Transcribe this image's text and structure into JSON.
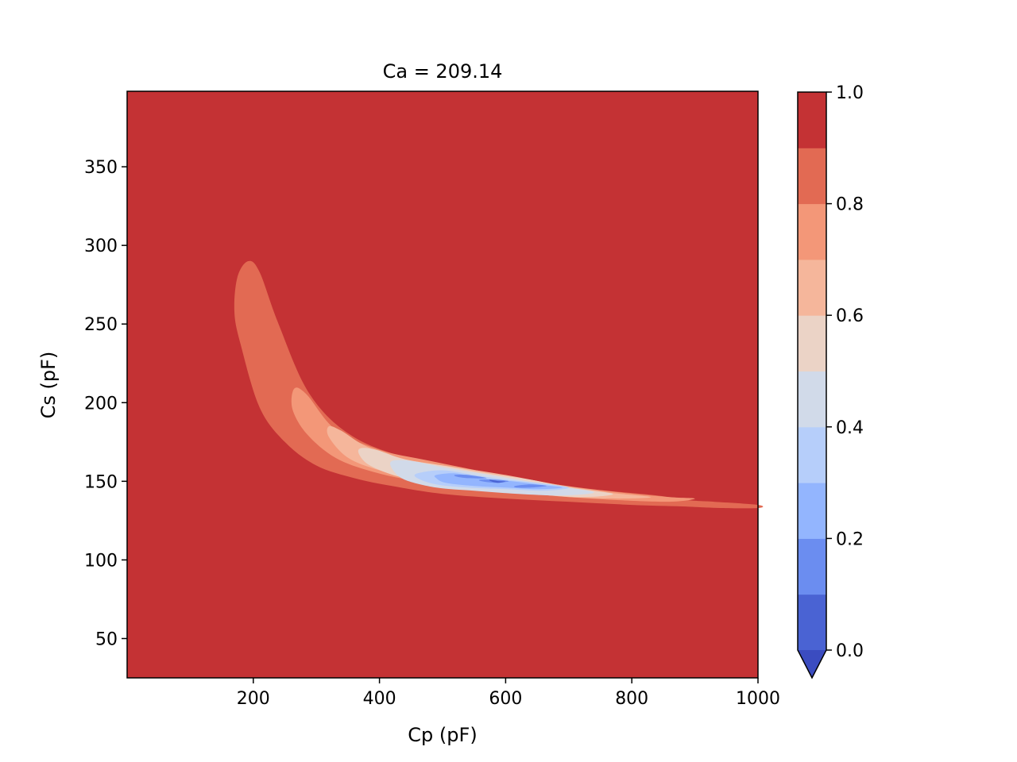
{
  "chart_data": {
    "type": "contourf",
    "title": "Ca = 209.14",
    "xlabel": "Cp (pF)",
    "ylabel": "Cs (pF)",
    "xlim": [
      0,
      1000
    ],
    "ylim": [
      25,
      398
    ],
    "x_ticks": [
      {
        "value": 200,
        "label": "200"
      },
      {
        "value": 400,
        "label": "400"
      },
      {
        "value": 600,
        "label": "600"
      },
      {
        "value": 800,
        "label": "800"
      },
      {
        "value": 1000,
        "label": "1000"
      }
    ],
    "y_ticks": [
      {
        "value": 50,
        "label": "50"
      },
      {
        "value": 100,
        "label": "100"
      },
      {
        "value": 150,
        "label": "150"
      },
      {
        "value": 200,
        "label": "200"
      },
      {
        "value": 250,
        "label": "250"
      },
      {
        "value": 300,
        "label": "300"
      },
      {
        "value": 350,
        "label": "350"
      }
    ],
    "colorbar": {
      "levels": [
        0.0,
        0.1,
        0.2,
        0.3,
        0.4,
        0.5,
        0.6,
        0.7,
        0.8,
        0.9,
        1.0
      ],
      "colors": [
        "#4a63d3",
        "#6b8df0",
        "#93b5fe",
        "#b6cefa",
        "#d1dae9",
        "#ebd3c6",
        "#f5b69b",
        "#f39778",
        "#e26a53",
        "#c43234"
      ],
      "extend_below_color": "#3b4cc0",
      "extend": "min",
      "tick_labels": [
        {
          "value": 0.0,
          "label": "0.0"
        },
        {
          "value": 0.2,
          "label": "0.2"
        },
        {
          "value": 0.4,
          "label": "0.4"
        },
        {
          "value": 0.6,
          "label": "0.6"
        },
        {
          "value": 0.8,
          "label": "0.8"
        },
        {
          "value": 1.0,
          "label": "1.0"
        }
      ]
    },
    "background_level_color": "#c43234",
    "contour_regions": [
      {
        "level": "0.8-0.9",
        "color": "#e26a53",
        "points": [
          [
            192,
            290
          ],
          [
            210,
            283
          ],
          [
            240,
            250
          ],
          [
            290,
            205
          ],
          [
            360,
            178
          ],
          [
            460,
            163
          ],
          [
            560,
            155
          ],
          [
            660,
            148
          ],
          [
            760,
            144
          ],
          [
            840,
            141
          ],
          [
            890,
            138
          ],
          [
            930,
            137
          ],
          [
            1000,
            135
          ],
          [
            1000,
            133
          ],
          [
            940,
            133
          ],
          [
            880,
            134
          ],
          [
            800,
            135
          ],
          [
            700,
            137
          ],
          [
            600,
            139
          ],
          [
            500,
            142
          ],
          [
            420,
            147
          ],
          [
            360,
            152
          ],
          [
            300,
            160
          ],
          [
            250,
            175
          ],
          [
            210,
            197
          ],
          [
            180,
            237
          ],
          [
            170,
            258
          ],
          [
            175,
            280
          ]
        ]
      },
      {
        "level": "0.7-0.8",
        "color": "#f39778",
        "points": [
          [
            265,
            209
          ],
          [
            285,
            205
          ],
          [
            330,
            183
          ],
          [
            400,
            170
          ],
          [
            480,
            163
          ],
          [
            580,
            155
          ],
          [
            680,
            148
          ],
          [
            780,
            143
          ],
          [
            860,
            140
          ],
          [
            900,
            139
          ],
          [
            860,
            137
          ],
          [
            780,
            138
          ],
          [
            700,
            140
          ],
          [
            620,
            143
          ],
          [
            540,
            146
          ],
          [
            460,
            150
          ],
          [
            390,
            156
          ],
          [
            330,
            165
          ],
          [
            285,
            180
          ],
          [
            262,
            196
          ]
        ]
      },
      {
        "level": "0.6-0.7",
        "color": "#f5b69b",
        "points": [
          [
            320,
            185
          ],
          [
            340,
            182
          ],
          [
            380,
            172
          ],
          [
            440,
            164
          ],
          [
            520,
            159
          ],
          [
            600,
            154
          ],
          [
            680,
            148
          ],
          [
            760,
            143
          ],
          [
            830,
            140
          ],
          [
            780,
            139
          ],
          [
            700,
            140
          ],
          [
            620,
            143
          ],
          [
            540,
            146
          ],
          [
            470,
            150
          ],
          [
            400,
            157
          ],
          [
            350,
            165
          ],
          [
            320,
            178
          ]
        ]
      },
      {
        "level": "0.5-0.6",
        "color": "#ebd3c6",
        "points": [
          [
            370,
            171
          ],
          [
            395,
            170
          ],
          [
            440,
            164
          ],
          [
            500,
            160
          ],
          [
            570,
            155
          ],
          [
            640,
            151
          ],
          [
            700,
            146
          ],
          [
            770,
            142
          ],
          [
            720,
            140
          ],
          [
            640,
            142
          ],
          [
            560,
            145
          ],
          [
            490,
            148
          ],
          [
            430,
            153
          ],
          [
            385,
            160
          ],
          [
            368,
            167
          ]
        ]
      },
      {
        "level": "0.4-0.5",
        "color": "#d1dae9",
        "points": [
          [
            420,
            163
          ],
          [
            450,
            163
          ],
          [
            500,
            159
          ],
          [
            560,
            155
          ],
          [
            620,
            151
          ],
          [
            680,
            147
          ],
          [
            740,
            143
          ],
          [
            690,
            141
          ],
          [
            620,
            142
          ],
          [
            550,
            144
          ],
          [
            490,
            146
          ],
          [
            440,
            151
          ],
          [
            420,
            158
          ]
        ]
      },
      {
        "level": "0.3-0.4",
        "color": "#b6cefa",
        "points": [
          [
            460,
            155
          ],
          [
            500,
            157
          ],
          [
            550,
            154
          ],
          [
            600,
            151
          ],
          [
            650,
            149
          ],
          [
            700,
            146
          ],
          [
            660,
            144
          ],
          [
            600,
            145
          ],
          [
            540,
            146
          ],
          [
            490,
            148
          ],
          [
            460,
            152
          ]
        ]
      },
      {
        "level": "0.2-0.3",
        "color": "#93b5fe",
        "points": [
          [
            490,
            154
          ],
          [
            520,
            155
          ],
          [
            560,
            152
          ],
          [
            610,
            150
          ],
          [
            650,
            148
          ],
          [
            690,
            146
          ],
          [
            650,
            145
          ],
          [
            600,
            146
          ],
          [
            550,
            147
          ],
          [
            505,
            149
          ],
          [
            490,
            152
          ]
        ]
      },
      {
        "level": "0.1-0.2",
        "color": "#6b8df0",
        "points": [
          [
            520,
            154
          ],
          [
            540,
            154
          ],
          [
            570,
            152
          ],
          [
            540,
            152
          ],
          [
            522,
            153
          ]
        ]
      },
      {
        "level": "0.1-0.2",
        "color": "#6b8df0",
        "points": [
          [
            560,
            151
          ],
          [
            585,
            151
          ],
          [
            605,
            150
          ],
          [
            585,
            149
          ],
          [
            562,
            150
          ]
        ]
      },
      {
        "level": "0.1-0.2",
        "color": "#6b8df0",
        "points": [
          [
            615,
            147
          ],
          [
            640,
            148
          ],
          [
            665,
            147
          ],
          [
            640,
            146
          ],
          [
            618,
            146
          ]
        ]
      },
      {
        "level": "0.0-0.1",
        "color": "#4a63d3",
        "points": [
          [
            575,
            151
          ],
          [
            590,
            150
          ],
          [
            600,
            150
          ],
          [
            588,
            149
          ],
          [
            577,
            150
          ]
        ]
      }
    ]
  }
}
